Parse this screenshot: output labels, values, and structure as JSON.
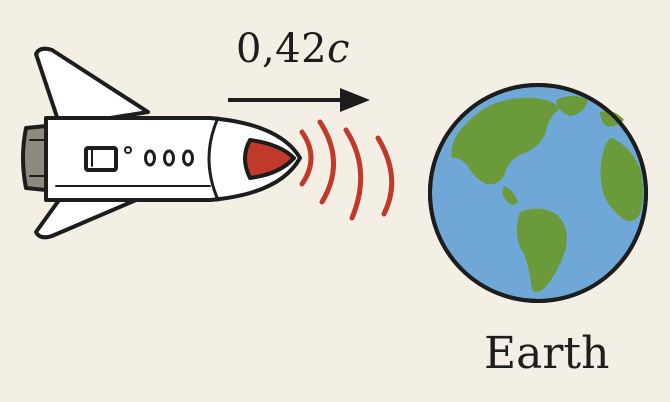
{
  "velocity": {
    "value": "0,42",
    "unit": "c"
  },
  "earth": {
    "label": "Earth"
  },
  "icons": [
    "spaceship-icon",
    "velocity-arrow-icon",
    "signal-waves-icon",
    "earth-globe-icon"
  ],
  "colors": {
    "background": "#f4efe4",
    "outline": "#1d1d1d",
    "nose_cone": "#c0392b",
    "signal_waves": "#c0392b",
    "ocean": "#6fa8d6",
    "land": "#6a9a3a",
    "engine": "#8f8a80"
  }
}
